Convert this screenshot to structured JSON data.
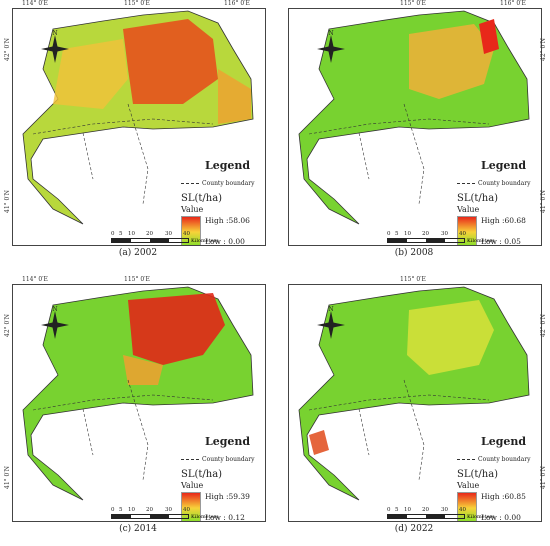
{
  "panels": [
    {
      "caption": "(a) 2002",
      "high": "High :58.06",
      "low": "Low : 0.00"
    },
    {
      "caption": "(b) 2008",
      "high": "High :60.68",
      "low": "Low : 0.05"
    },
    {
      "caption": "(c) 2014",
      "high": "High :59.39",
      "low": "Low : 0.12"
    },
    {
      "caption": "(d) 2022",
      "high": "High :60.85",
      "low": "Low : 0.00"
    }
  ],
  "legend": {
    "title": "Legend",
    "boundary": "County boundary",
    "sl": "SL(t/ha)",
    "value": "Value"
  },
  "north": "N",
  "scale": {
    "l0": "0",
    "l1": "5",
    "l2": "10",
    "l3": "20",
    "l4": "30",
    "l5": "40",
    "unit": "Kilometers"
  },
  "ticks": {
    "top1": "114° 0′E",
    "top2": "115° 0′E",
    "top3": "116° 0′E",
    "left1": "42° 0′N",
    "left2": "41° 0′N",
    "right1": "42° 0′N",
    "right2": "41° 0′N"
  },
  "colors": {
    "high": "#e8281a",
    "mid": "#f7d23a",
    "low": "#7fe02a"
  }
}
